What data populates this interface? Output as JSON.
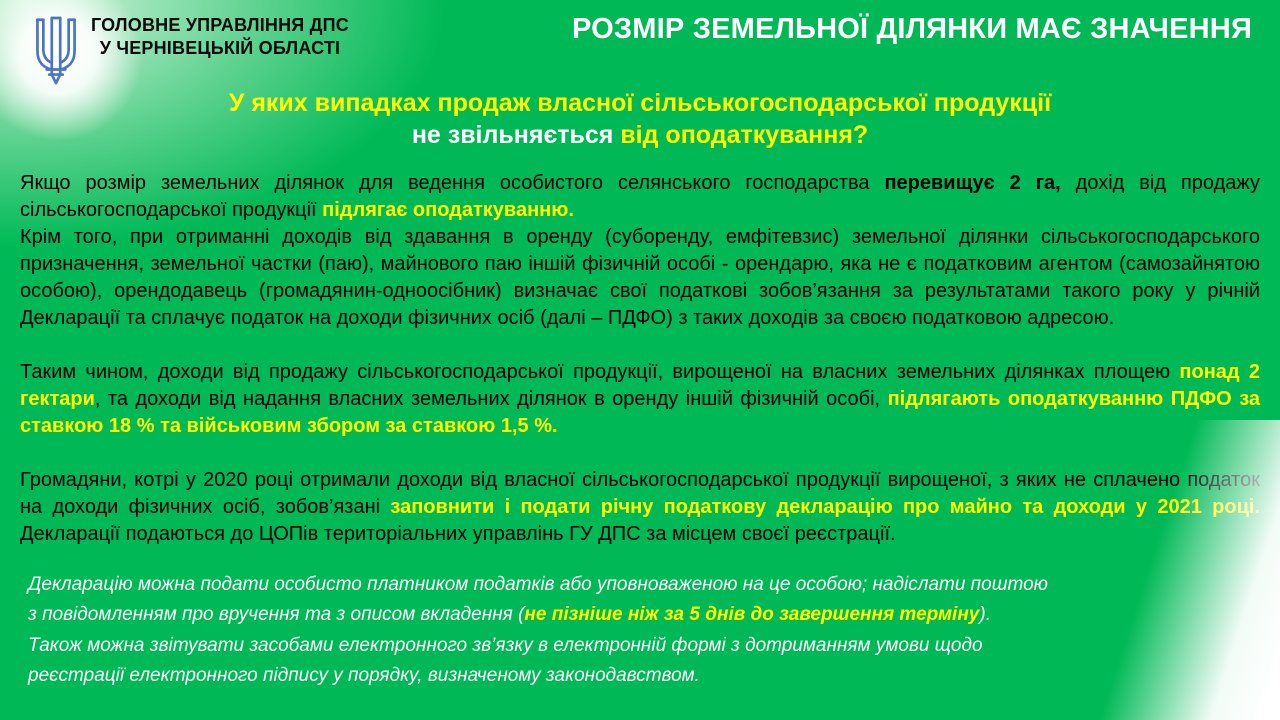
{
  "colors": {
    "background_green": "#00b956",
    "accent_yellow": "#ffff00",
    "text_black": "#000000",
    "text_white": "#ffffff",
    "trident_blue": "#4a74c4"
  },
  "icons": {
    "brand": "ukraine-trident-coat-of-arms"
  },
  "header": {
    "org_line1": "ГОЛОВНЕ УПРАВЛІННЯ ДПС",
    "org_line2": "У ЧЕРНІВЕЦЬКІЙ ОБЛАСТІ",
    "title": "РОЗМІР ЗЕМЕЛЬНОЇ ДІЛЯНКИ МАЄ ЗНАЧЕННЯ"
  },
  "heading": {
    "line1": [
      {
        "t": "У яких випадках продаж власної сільськогосподарської продукції",
        "s": "yb"
      }
    ],
    "line2": [
      {
        "t": "не звільняється",
        "s": "wb"
      },
      {
        "t": " від оподаткування?",
        "s": "yb"
      }
    ]
  },
  "content": {
    "paragraphs": [
      {
        "segments": [
          {
            "t": "Якщо розмір земельних ділянок для ведення особистого селянського господарства ",
            "s": "n"
          },
          {
            "t": "перевищує 2 га,",
            "s": "b"
          },
          {
            "t": " дохід від продажу сільськогосподарської продукції ",
            "s": "n"
          },
          {
            "t": "підлягає оподаткуванню",
            "s": "yb"
          },
          {
            "t": ".",
            "s": "yb"
          }
        ]
      },
      {
        "segments": [
          {
            "t": "Крім того, при отриманні доходів від здавання в оренду (суборенду, емфітевзис) земельної ділянки сільськогосподарського призначення, земельної частки (паю), майнового паю іншій фізичній особі - орендарю, яка не є податковим агентом (самозайнятою особою), орендодавець (громадянин-одноосібник) визначає свої податкові зобов’язання за результатами такого року у річній Декларації та сплачує податок на доходи фізичних осіб (далі – ПДФО) з таких доходів за своєю податковою адресою.",
            "s": "n"
          }
        ]
      },
      {
        "segments": [
          {
            "t": "Таким чином, доходи від продажу сільськогосподарської продукції, вирощеної на власних земельних ділянках площею ",
            "s": "n"
          },
          {
            "t": "понад 2 гектари",
            "s": "yb"
          },
          {
            "t": ", та доходи від надання власних земельних ділянок в оренду іншій фізичній особі, ",
            "s": "n"
          },
          {
            "t": "підлягають оподаткуванню ПДФО за ставкою 18 % та військовим збором за ставкою 1,5 %.",
            "s": "yb"
          }
        ]
      },
      {
        "segments": [
          {
            "t": "Громадяни, котрі у 2020 році отримали доходи від власної сільськогосподарської продукції вирощеної, з яких не сплачено податок на доходи фізичних осіб, зобов’язані ",
            "s": "n"
          },
          {
            "t": "заповнити і подати річну податкову декларацію про майно та доходи у 2021 році.",
            "s": "yb"
          },
          {
            "t": " Декларації подаються до ЦОПів територіальних управлінь ГУ ДПС за місцем своєї реєстрації.",
            "s": "n"
          }
        ]
      }
    ],
    "note_lines": [
      {
        "segments": [
          {
            "t": "Декларацію можна подати особисто платником податків або уповноваженою на це особою; надіслати поштою",
            "s": "wi"
          }
        ]
      },
      {
        "segments": [
          {
            "t": "з повідомленням про вручення та з описом вкладення (",
            "s": "wi"
          },
          {
            "t": "не пізніше ніж за 5 днів до завершення терміну",
            "s": "ybi"
          },
          {
            "t": ").",
            "s": "wi"
          }
        ]
      },
      {
        "segments": [
          {
            "t": "Також можна звітувати засобами електронного зв’язку в електронній формі з дотриманням умови щодо",
            "s": "wi"
          }
        ]
      },
      {
        "segments": [
          {
            "t": "реєстрації електронного підпису у порядку, визначеному законодавством.",
            "s": "wi"
          }
        ]
      }
    ]
  }
}
